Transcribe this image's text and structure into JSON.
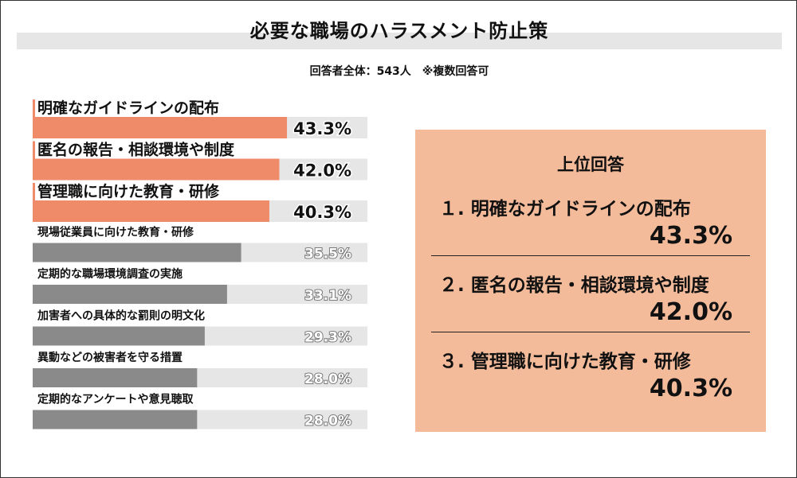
{
  "title": "必要な職場のハラスメント防止策",
  "subtitle": "回答者全体：543人　※複数回答可",
  "colors": {
    "highlight": "#f08b6a",
    "normal": "#8a8a8a",
    "track": "#e6e6e6",
    "panel": "#f4bb9b"
  },
  "chart_data": {
    "type": "bar",
    "orientation": "horizontal",
    "categories": [
      "明確なガイドラインの配布",
      "匿名の報告・相談環境や制度",
      "管理職に向けた教育・研修",
      "現場従業員に向けた教育・研修",
      "定期的な職場環境調査の実施",
      "加害者への具体的な罰則の明文化",
      "異動などの被害者を守る措置",
      "定期的なアンケートや意見聴取"
    ],
    "values": [
      43.3,
      42.0,
      40.3,
      35.5,
      33.1,
      29.3,
      28.0,
      28.0
    ],
    "value_labels": [
      "43.3%",
      "42.0%",
      "40.3%",
      "35.5%",
      "33.1%",
      "29.3%",
      "28.0%",
      "28.0%"
    ],
    "highlighted_top": 3,
    "unit": "%"
  },
  "top_answers": {
    "title": "上位回答",
    "items": [
      {
        "label": "１. 明確なガイドラインの配布",
        "value": "43.3%"
      },
      {
        "label": "２. 匿名の報告・相談環境や制度",
        "value": "42.0%"
      },
      {
        "label": "３. 管理職に向けた教育・研修",
        "value": "40.3%"
      }
    ]
  }
}
